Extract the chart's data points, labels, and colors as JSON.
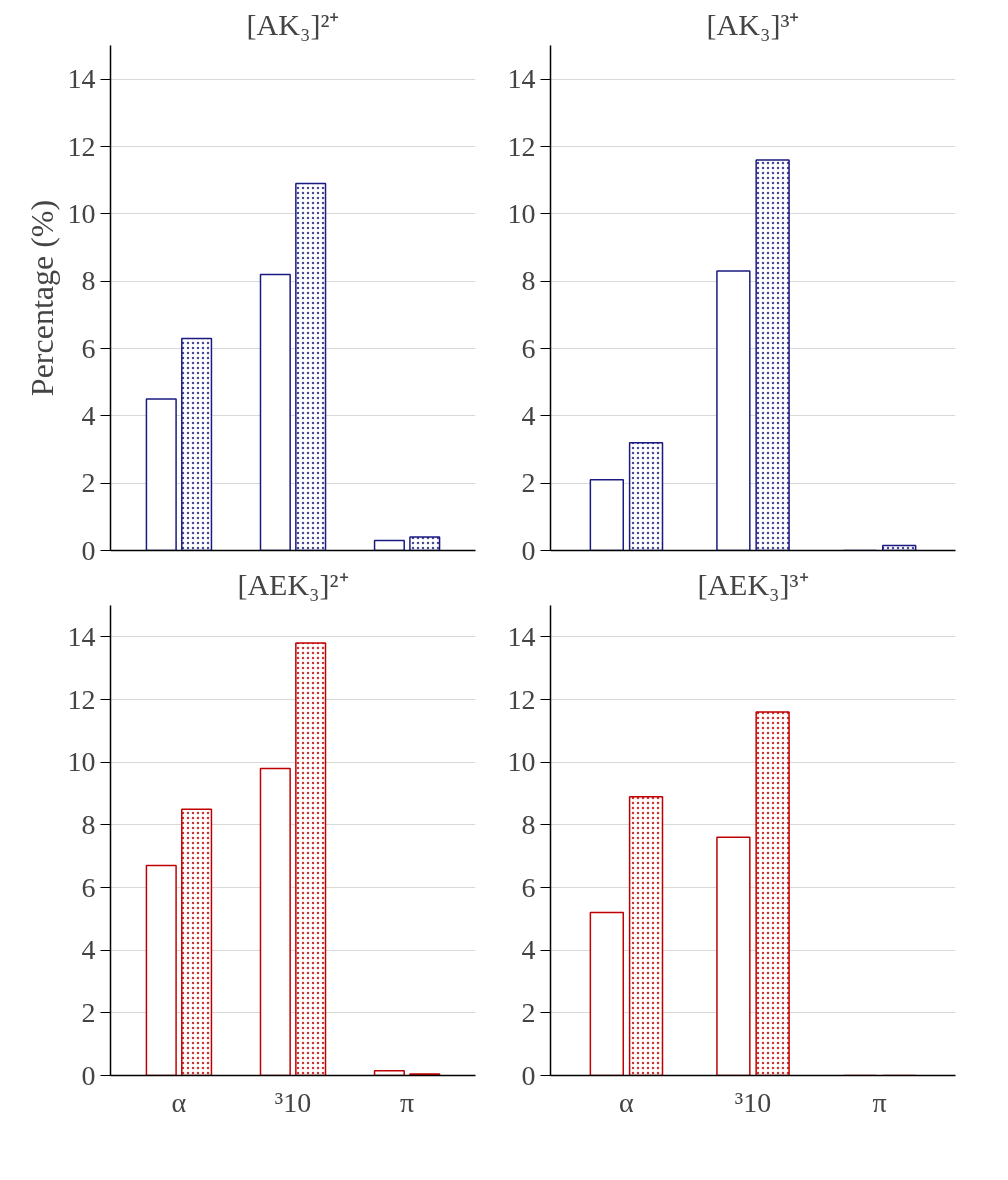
{
  "chart_data": [
    {
      "type": "bar",
      "title": "[AK₃]²⁺",
      "ylabel": "Percentage (%)",
      "categories": [
        null,
        null,
        null
      ],
      "ylim": [
        0,
        15
      ],
      "yticks": [
        0,
        2,
        4,
        6,
        8,
        10,
        12,
        14
      ],
      "grid": "y",
      "tick_labels": "y",
      "series": [
        {
          "color": "#1a1a80",
          "values": [
            4.5,
            8.2,
            0.3
          ]
        },
        {
          "color": "#1a1a80",
          "values": [
            6.3,
            10.9,
            0.4
          ]
        }
      ]
    },
    {
      "type": "bar",
      "title": "[AK₃]³⁺",
      "categories": [
        null,
        null,
        null
      ],
      "ylim": [
        0,
        15
      ],
      "yticks": [
        0,
        2,
        4,
        6,
        8,
        10,
        12,
        14
      ],
      "grid": "y",
      "tick_labels": "y",
      "series": [
        {
          "color": "#1a1a80",
          "values": [
            2.1,
            8.3,
            0
          ]
        },
        {
          "color": "#1a1a80",
          "values": [
            3.2,
            11.6,
            0.15
          ]
        }
      ]
    },
    {
      "type": "bar",
      "title": "[AEK₃]²⁺",
      "categories": [
        "α",
        "³10",
        "π"
      ],
      "ylim": [
        0,
        15
      ],
      "yticks": [
        0,
        2,
        4,
        6,
        8,
        10,
        12,
        14
      ],
      "grid": "y",
      "series": [
        {
          "color": "#c00000",
          "values": [
            6.7,
            9.8,
            0.15
          ]
        },
        {
          "color": "#c00000",
          "values": [
            8.5,
            13.8,
            0.05
          ]
        }
      ]
    },
    {
      "type": "bar",
      "title": "[AEK₃]³⁺",
      "categories": [
        "α",
        "³10",
        "π"
      ],
      "ylim": [
        0,
        15
      ],
      "yticks": [
        0,
        2,
        4,
        6,
        8,
        10,
        12,
        14
      ],
      "grid": "y",
      "series": [
        {
          "color": "#c00000",
          "values": [
            5.2,
            7.6,
            0
          ]
        },
        {
          "color": "#c00000",
          "values": [
            8.9,
            11.6,
            0
          ]
        }
      ]
    }
  ]
}
